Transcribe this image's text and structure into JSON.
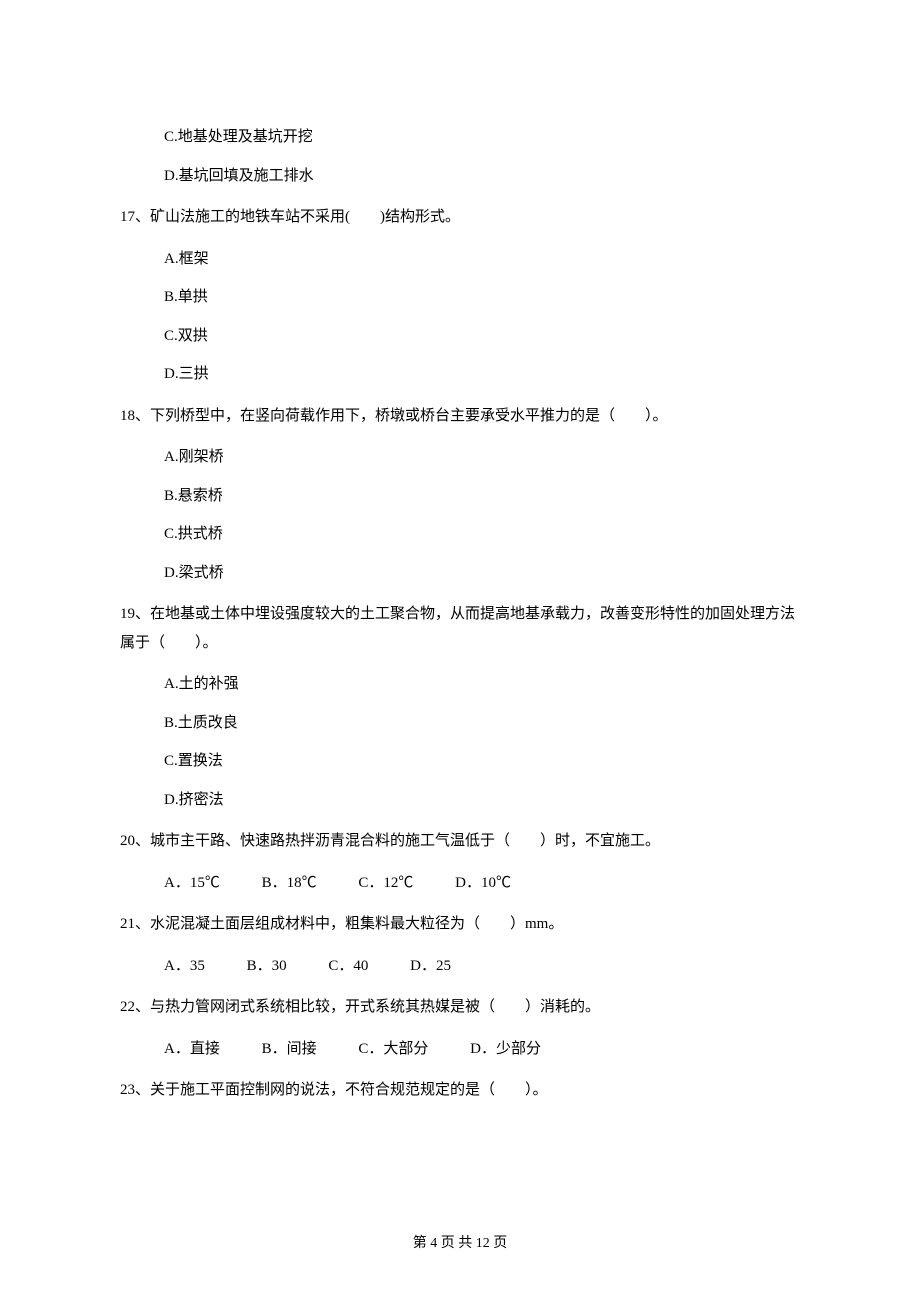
{
  "page": {
    "footer": "第 4 页 共 12 页"
  },
  "q16_tail": {
    "optC": "C.地基处理及基坑开挖",
    "optD": "D.基坑回填及施工排水"
  },
  "q17": {
    "text": "17、矿山法施工的地铁车站不采用(　　)结构形式。",
    "optA": "A.框架",
    "optB": "B.单拱",
    "optC": "C.双拱",
    "optD": "D.三拱"
  },
  "q18": {
    "text": "18、下列桥型中，在竖向荷载作用下，桥墩或桥台主要承受水平推力的是（　　）。",
    "optA": "A.刚架桥",
    "optB": "B.悬索桥",
    "optC": "C.拱式桥",
    "optD": "D.梁式桥"
  },
  "q19": {
    "text": "19、在地基或土体中埋设强度较大的土工聚合物，从而提高地基承载力，改善变形特性的加固处理方法属于（　　）。",
    "optA": "A.土的补强",
    "optB": "B.土质改良",
    "optC": "C.置换法",
    "optD": "D.挤密法"
  },
  "q20": {
    "text": "20、城市主干路、快速路热拌沥青混合料的施工气温低于（　　）时，不宜施工。",
    "optA": "A．15℃",
    "optB": "B．18℃",
    "optC": "C．12℃",
    "optD": "D．10℃"
  },
  "q21": {
    "text": "21、水泥混凝土面层组成材料中，粗集料最大粒径为（　　）mm。",
    "optA": "A．35",
    "optB": "B．30",
    "optC": "C．40",
    "optD": "D．25"
  },
  "q22": {
    "text": "22、与热力管网闭式系统相比较，开式系统其热媒是被（　　）消耗的。",
    "optA": "A．直接",
    "optB": "B．间接",
    "optC": "C．大部分",
    "optD": "D．少部分"
  },
  "q23": {
    "text": "23、关于施工平面控制网的说法，不符合规范规定的是（　　）。"
  }
}
